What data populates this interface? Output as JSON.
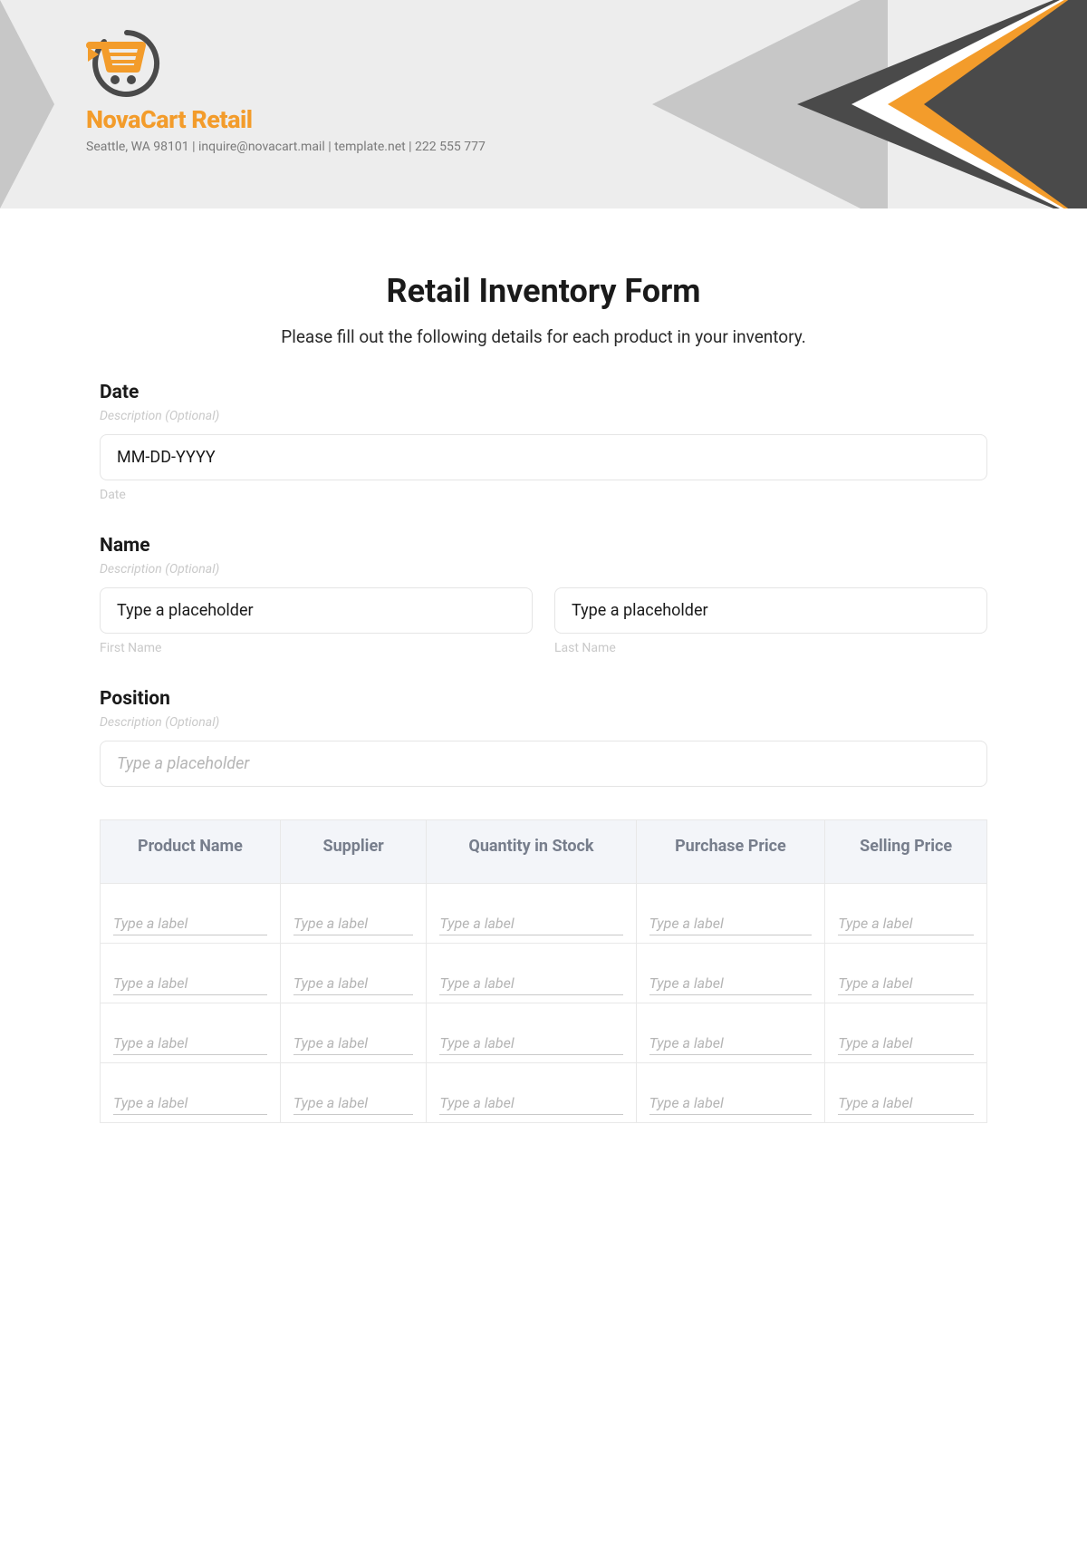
{
  "brand": {
    "name": "NovaCart Retail",
    "meta": "Seattle, WA 98101 | inquire@novacart.mail | template.net | 222 555 777",
    "accent_color": "#f39c2b",
    "dark_color": "#4a4a4a"
  },
  "form": {
    "title": "Retail Inventory Form",
    "subtitle": "Please fill out the following details for each product in your inventory.",
    "fields": {
      "date": {
        "label": "Date",
        "description": "Description (Optional)",
        "placeholder": "MM-DD-YYYY",
        "sub": "Date"
      },
      "name": {
        "label": "Name",
        "description": "Description (Optional)",
        "first_placeholder": "Type a placeholder",
        "last_placeholder": "Type a placeholder",
        "first_sub": "First Name",
        "last_sub": "Last Name"
      },
      "position": {
        "label": "Position",
        "description": "Description (Optional)",
        "placeholder": "Type a placeholder"
      }
    },
    "table": {
      "columns": [
        "Product Name",
        "Supplier",
        "Quantity in Stock",
        "Purchase Price",
        "Selling Price"
      ],
      "cell_placeholder": "Type a label",
      "rows": 4,
      "header_bg": "#f3f5f9",
      "header_fg": "#777e8c",
      "border_color": "#e8e8e8"
    }
  }
}
